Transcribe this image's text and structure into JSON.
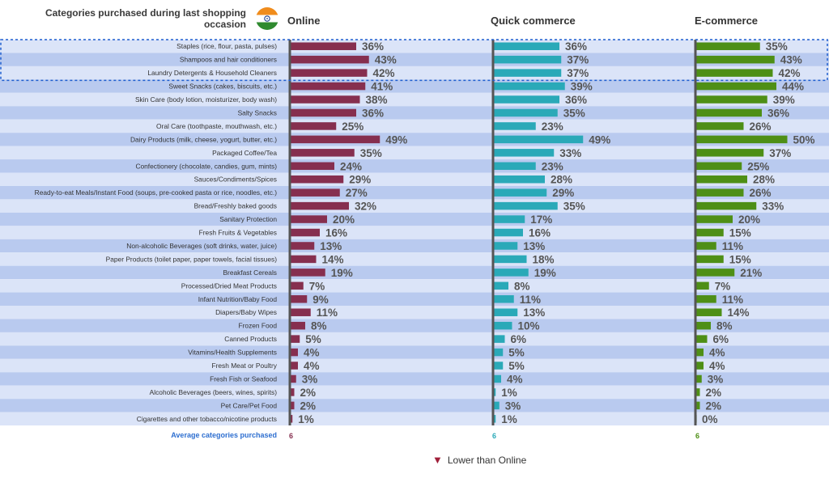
{
  "header": {
    "title": "Categories purchased during last shopping occasion",
    "columns": [
      "Online",
      "Quick commerce",
      "E-commerce"
    ]
  },
  "colors": {
    "online": "#862f4f",
    "quick": "#2aa9b8",
    "ecom": "#4e8f16",
    "row_light": "#dbe4f8",
    "row_dark": "#b9caef",
    "highlight": "#1f5ecf",
    "avg_label": "#2e6fd0"
  },
  "flag_icon": "india-flag-icon",
  "chart_data": {
    "type": "bar",
    "title": "Categories purchased during last shopping occasion",
    "xlabel": "",
    "ylabel": "",
    "xlim": [
      0,
      100
    ],
    "categories": [
      "Staples (rice, flour, pasta, pulses)",
      "Shampoos and hair conditioners",
      "Laundry Detergents & Household Cleaners",
      "Sweet Snacks (cakes, biscuits, etc.)",
      "Skin Care (body lotion, moisturizer, body wash)",
      "Salty Snacks",
      "Oral Care (toothpaste, mouthwash, etc.)",
      "Dairy Products (milk, cheese, yogurt, butter, etc.)",
      "Packaged Coffee/Tea",
      "Confectionery (chocolate, candies, gum, mints)",
      "Sauces/Condiments/Spices",
      "Ready-to-eat Meals/Instant Food (soups, pre-cooked pasta or rice, noodles, etc.)",
      "Bread/Freshly baked goods",
      "Sanitary Protection",
      "Fresh Fruits & Vegetables",
      "Non-alcoholic Beverages (soft drinks, water, juice)",
      "Paper Products (toilet paper, paper towels, facial tissues)",
      "Breakfast Cereals",
      "Processed/Dried Meat Products",
      "Infant Nutrition/Baby Food",
      "Diapers/Baby Wipes",
      "Frozen Food",
      "Canned Products",
      "Vitamins/Health Supplements",
      "Fresh Meat or Poultry",
      "Fresh Fish or Seafood",
      "Alcoholic Beverages (beers, wines, spirits)",
      "Pet Care/Pet Food",
      "Cigarettes and other tobacco/nicotine products"
    ],
    "highlighted_rows": [
      0,
      1,
      2
    ],
    "series": [
      {
        "name": "Online",
        "values": [
          36,
          43,
          42,
          41,
          38,
          36,
          25,
          49,
          35,
          24,
          29,
          27,
          32,
          20,
          16,
          13,
          14,
          19,
          7,
          9,
          11,
          8,
          5,
          4,
          4,
          3,
          2,
          2,
          1
        ]
      },
      {
        "name": "Quick commerce",
        "values": [
          36,
          37,
          37,
          39,
          36,
          35,
          23,
          49,
          33,
          23,
          28,
          29,
          35,
          17,
          16,
          13,
          18,
          19,
          8,
          11,
          13,
          10,
          6,
          5,
          5,
          4,
          1,
          3,
          1
        ]
      },
      {
        "name": "E-commerce",
        "values": [
          35,
          43,
          42,
          44,
          39,
          36,
          26,
          50,
          37,
          25,
          28,
          26,
          33,
          20,
          15,
          11,
          15,
          21,
          7,
          11,
          14,
          8,
          6,
          4,
          4,
          3,
          2,
          2,
          0
        ]
      }
    ],
    "average_label": "Average categories purchased",
    "averages": [
      "6",
      "6",
      "6"
    ]
  },
  "legend": {
    "label": "Lower than Online",
    "symbol": "▼"
  }
}
